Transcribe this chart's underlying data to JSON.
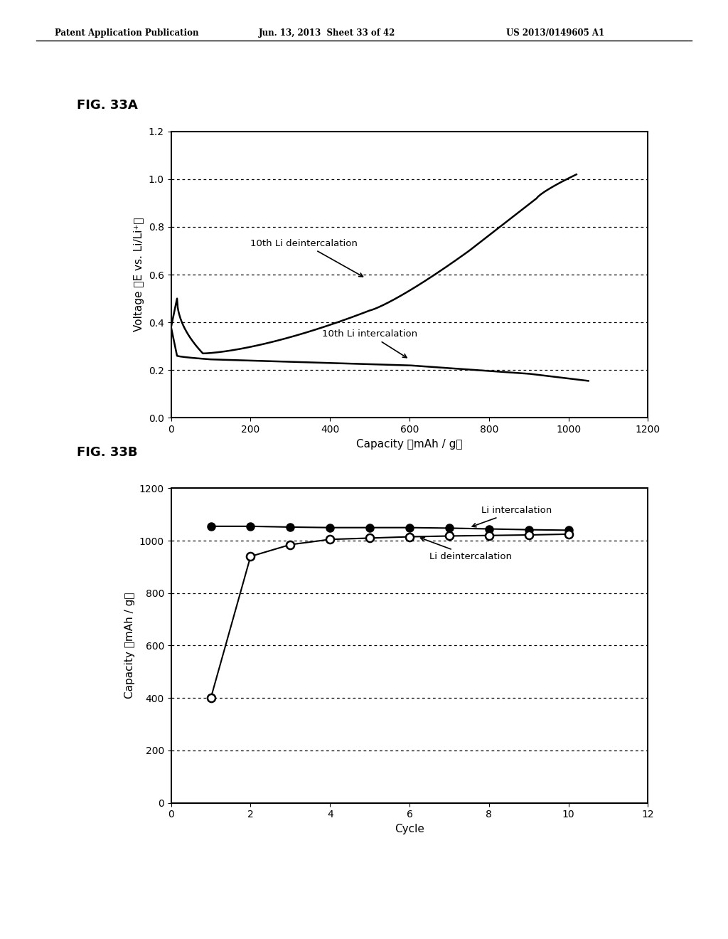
{
  "header_left": "Patent Application Publication",
  "header_center": "Jun. 13, 2013  Sheet 33 of 42",
  "header_right": "US 2013/0149605 A1",
  "fig_label_A": "FIG. 33A",
  "fig_label_B": "FIG. 33B",
  "plot_A": {
    "xlabel": "Capacity （mAh / g）",
    "ylabel": "Voltage （E vs. Li/Li⁺）",
    "xlim": [
      0,
      1200
    ],
    "ylim": [
      0.0,
      1.2
    ],
    "xticks": [
      0,
      200,
      400,
      600,
      800,
      1000,
      1200
    ],
    "yticks": [
      0.0,
      0.2,
      0.4,
      0.6,
      0.8,
      1.0,
      1.2
    ],
    "grid_yticks": [
      0.2,
      0.4,
      0.6,
      0.8,
      1.0
    ],
    "annotation_deintercalation": "10th Li deintercalation",
    "annotation_intercalation": "10th Li intercalation"
  },
  "plot_B": {
    "xlabel": "Cycle",
    "ylabel": "Capacity （mAh / g）",
    "xlim": [
      0,
      12
    ],
    "ylim": [
      0,
      1200
    ],
    "xticks": [
      0,
      2,
      4,
      6,
      8,
      10,
      12
    ],
    "yticks": [
      0,
      200,
      400,
      600,
      800,
      1000,
      1200
    ],
    "grid_yticks": [
      200,
      400,
      600,
      800,
      1000
    ],
    "annotation_intercalation": "Li intercalation",
    "annotation_deintercalation": "Li deintercalation",
    "intercalation_x": [
      1,
      2,
      3,
      4,
      5,
      6,
      7,
      8,
      9,
      10
    ],
    "intercalation_y": [
      1055,
      1055,
      1052,
      1050,
      1050,
      1050,
      1048,
      1045,
      1042,
      1040
    ],
    "deintercalation_x": [
      1,
      2,
      3,
      4,
      5,
      6,
      7,
      8,
      9,
      10
    ],
    "deintercalation_y": [
      400,
      940,
      985,
      1005,
      1010,
      1015,
      1018,
      1020,
      1022,
      1025
    ]
  },
  "background_color": "#ffffff",
  "line_color": "#000000",
  "text_color": "#000000"
}
